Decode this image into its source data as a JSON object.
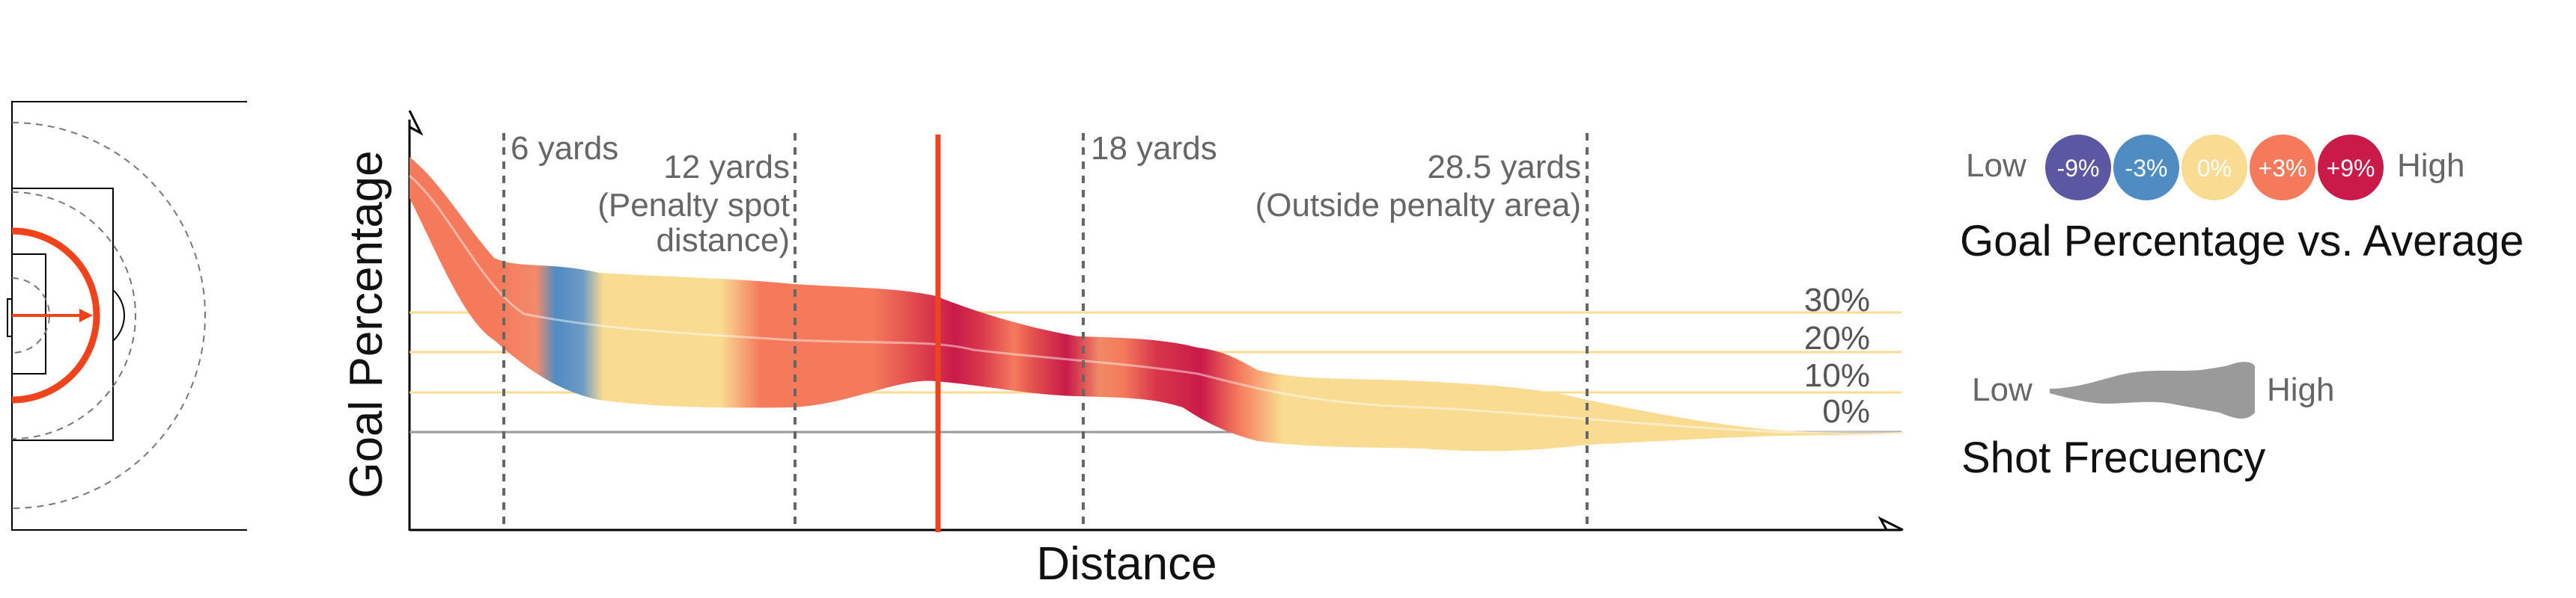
{
  "chart_data": {
    "type": "area",
    "title": "",
    "xlabel": "Distance",
    "ylabel": "Goal Percentage",
    "y_ticks": [
      "30%",
      "20%",
      "10%",
      "0%"
    ],
    "reference_lines": [
      {
        "label": "6 yards",
        "lines": [
          "6 yards"
        ]
      },
      {
        "label": "12 yards (Penalty spot distance)",
        "lines": [
          "12 yards",
          "(Penalty spot",
          "distance)"
        ]
      },
      {
        "label": "18 yards",
        "lines": [
          "18 yards"
        ]
      },
      {
        "label": "28.5 yards (Outside penalty area)",
        "lines": [
          "28.5 yards",
          "(Outside penalty area)"
        ]
      }
    ],
    "color_legend": {
      "title": "Goal Percentage vs. Average",
      "low": "Low",
      "high": "High",
      "items": [
        {
          "label": "-9%",
          "color": "#5b57a3"
        },
        {
          "label": "-3%",
          "color": "#4e8cc2"
        },
        {
          "label": "0%",
          "color": "#f9dc92"
        },
        {
          "label": "+3%",
          "color": "#f57a5c"
        },
        {
          "label": "+9%",
          "color": "#c91a49"
        }
      ]
    },
    "width_legend": {
      "title": "Shot Frecuency",
      "low": "Low",
      "high": "High",
      "color": "#9a9a9a"
    },
    "highlight_color": "#f0431c"
  }
}
